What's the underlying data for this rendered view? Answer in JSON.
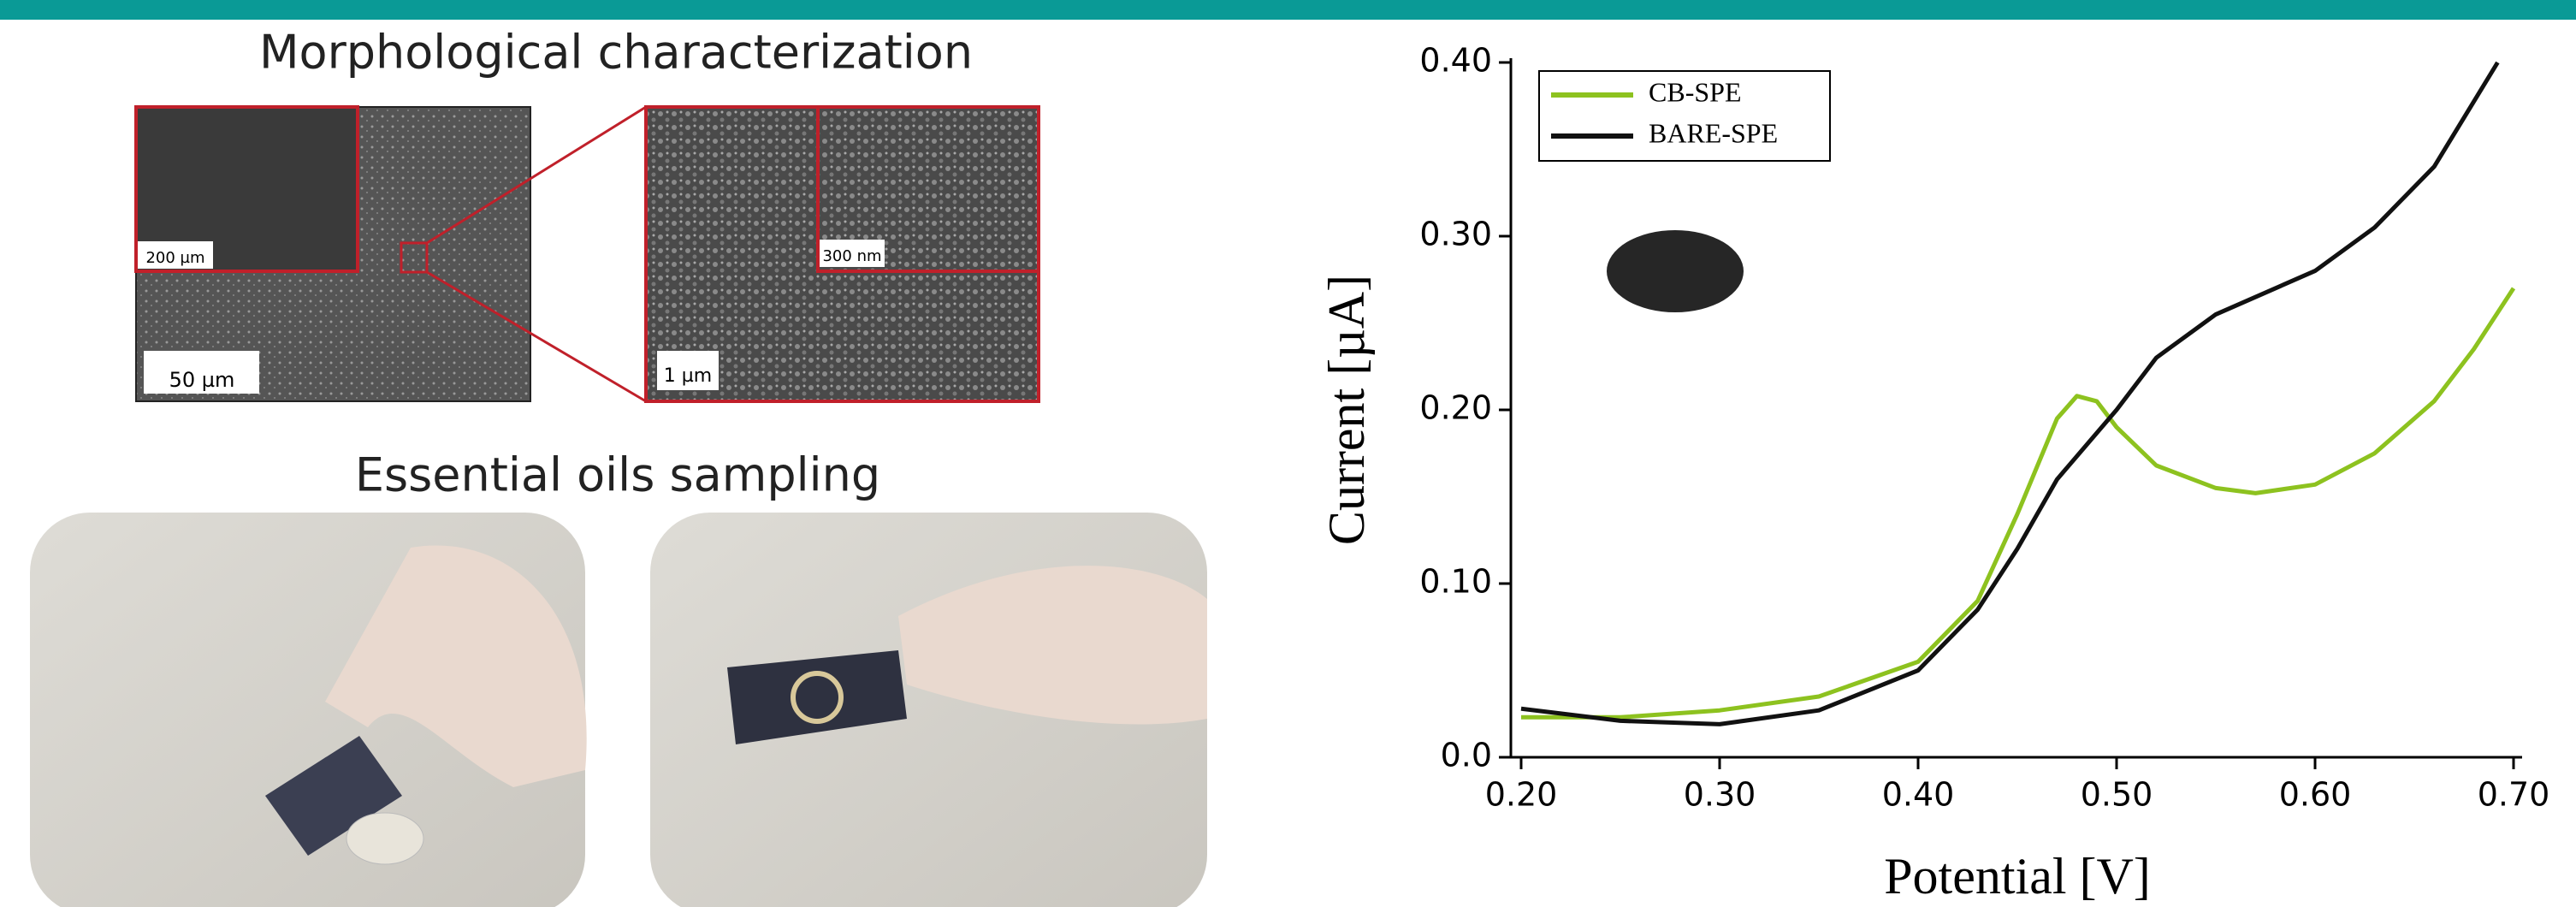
{
  "panels": {
    "morphology_title": "Morphological characterization",
    "sampling_title": "Essential oils sampling",
    "scale_bars": [
      "200 µm",
      "50 µm",
      "1 µm",
      "300 nm"
    ]
  },
  "chart_data": {
    "type": "line",
    "x_label": "Potential [V]",
    "y_label": "Current [µA]",
    "xlim": [
      0.2,
      0.7
    ],
    "ylim": [
      0,
      0.4
    ],
    "xticks": [
      {
        "value": 0.2,
        "label": "0.20"
      },
      {
        "value": 0.3,
        "label": "0.30"
      },
      {
        "value": 0.4,
        "label": "0.40"
      },
      {
        "value": 0.5,
        "label": "0.50"
      },
      {
        "value": 0.6,
        "label": "0.60"
      },
      {
        "value": 0.7,
        "label": "0.70"
      }
    ],
    "yticks": [
      {
        "value": 0,
        "label": "0.0"
      },
      {
        "value": 0.1,
        "label": "0.10"
      },
      {
        "value": 0.2,
        "label": "0.20"
      },
      {
        "value": 0.3,
        "label": "0.30"
      },
      {
        "value": 0.4,
        "label": "0.40"
      }
    ],
    "legend": "upper left",
    "series": [
      {
        "name": "CB-SPE",
        "color": "#8dc21f",
        "x": [
          0.2,
          0.25,
          0.3,
          0.35,
          0.4,
          0.43,
          0.45,
          0.47,
          0.48,
          0.49,
          0.5,
          0.52,
          0.55,
          0.57,
          0.6,
          0.63,
          0.66,
          0.68,
          0.7
        ],
        "values": [
          0.023,
          0.023,
          0.027,
          0.035,
          0.055,
          0.09,
          0.14,
          0.195,
          0.208,
          0.205,
          0.19,
          0.168,
          0.155,
          0.152,
          0.157,
          0.175,
          0.205,
          0.235,
          0.27
        ]
      },
      {
        "name": "BARE-SPE",
        "color": "#111111",
        "x": [
          0.2,
          0.25,
          0.3,
          0.35,
          0.4,
          0.43,
          0.45,
          0.47,
          0.5,
          0.52,
          0.55,
          0.58,
          0.6,
          0.63,
          0.66,
          0.692
        ],
        "values": [
          0.028,
          0.021,
          0.019,
          0.027,
          0.05,
          0.085,
          0.12,
          0.16,
          0.2,
          0.23,
          0.255,
          0.27,
          0.28,
          0.305,
          0.34,
          0.4
        ]
      }
    ]
  }
}
